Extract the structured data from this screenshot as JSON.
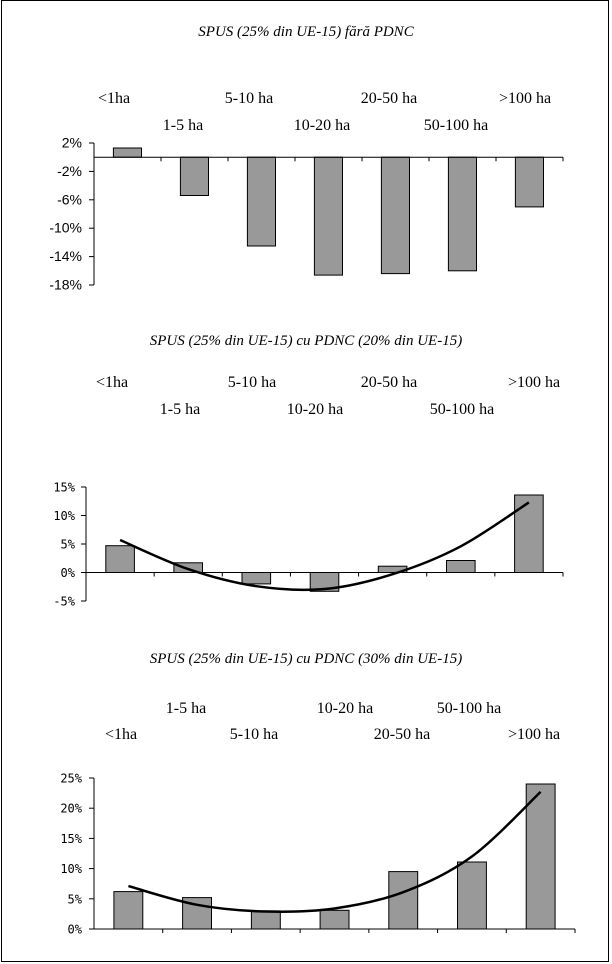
{
  "chart_data": [
    {
      "type": "bar",
      "title": "SPUS (25% din UE-15) fără PDNC",
      "categories": [
        "<1ha",
        "1-5 ha",
        "5-10 ha",
        "10-20 ha",
        "20-50 ha",
        "50-100 ha",
        ">100 ha"
      ],
      "values": [
        1.3,
        -5.4,
        -12.5,
        -16.6,
        -16.4,
        -16.0,
        -7.0
      ],
      "ylim": [
        -18,
        2
      ],
      "yticks": [
        "2%",
        "-2%",
        "-6%",
        "-10%",
        "-14%",
        "-18%"
      ],
      "bar_color": "#999999",
      "grid": false
    },
    {
      "type": "bar",
      "title": "SPUS (25% din UE-15) cu PDNC (20% din UE-15)",
      "categories": [
        "<1ha",
        "1-5 ha",
        "5-10 ha",
        "10-20 ha",
        "20-50 ha",
        "50-100 ha",
        ">100 ha"
      ],
      "values": [
        4.7,
        1.7,
        -2.0,
        -3.3,
        1.1,
        2.1,
        13.6
      ],
      "trendline": [
        5.7,
        0.6,
        -2.4,
        -2.9,
        -0.3,
        4.6,
        12.3
      ],
      "ylim": [
        -5,
        15
      ],
      "yticks": [
        "15%",
        "10%",
        "5%",
        "0%",
        "-5%"
      ],
      "bar_color": "#999999",
      "grid": false
    },
    {
      "type": "bar",
      "title": "SPUS (25% din UE-15) cu PDNC (30% din UE-15)",
      "categories": [
        "<1ha",
        "1-5 ha",
        "5-10 ha",
        "10-20 ha",
        "20-50 ha",
        "50-100 ha",
        ">100 ha"
      ],
      "values": [
        6.2,
        5.2,
        3.0,
        3.1,
        9.5,
        11.1,
        24.0
      ],
      "trendline": [
        7.1,
        4.0,
        2.9,
        3.4,
        6.1,
        12.0,
        22.7
      ],
      "ylim": [
        0,
        25
      ],
      "yticks": [
        "25%",
        "20%",
        "15%",
        "10%",
        "5%",
        "0%"
      ],
      "bar_color": "#999999",
      "grid": false
    }
  ]
}
